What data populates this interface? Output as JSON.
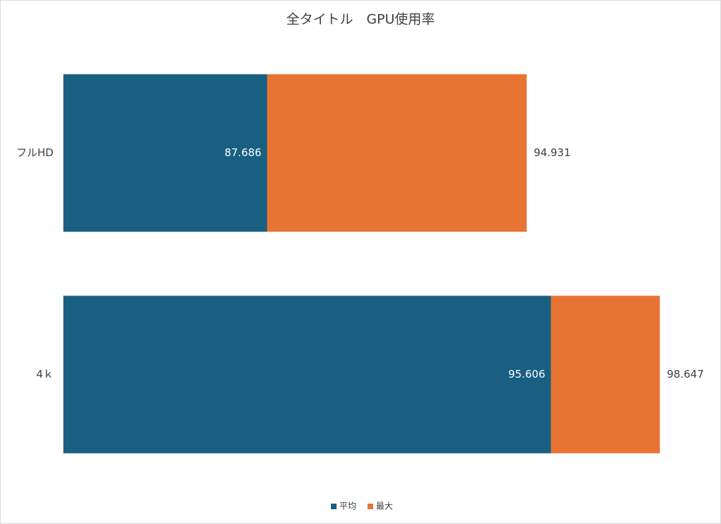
{
  "chart_data": {
    "type": "bar",
    "orientation": "horizontal",
    "title": "全タイトル　GPU使用率",
    "categories": [
      "フルHD",
      "4ｋ"
    ],
    "series": [
      {
        "name": "平均",
        "color": "#185f81",
        "values": [
          87.686,
          95.606
        ]
      },
      {
        "name": "最大",
        "color": "#e87434",
        "values": [
          94.931,
          98.647
        ]
      }
    ],
    "xlim": [
      82,
      100
    ],
    "legend": "bottom",
    "grid": false
  }
}
